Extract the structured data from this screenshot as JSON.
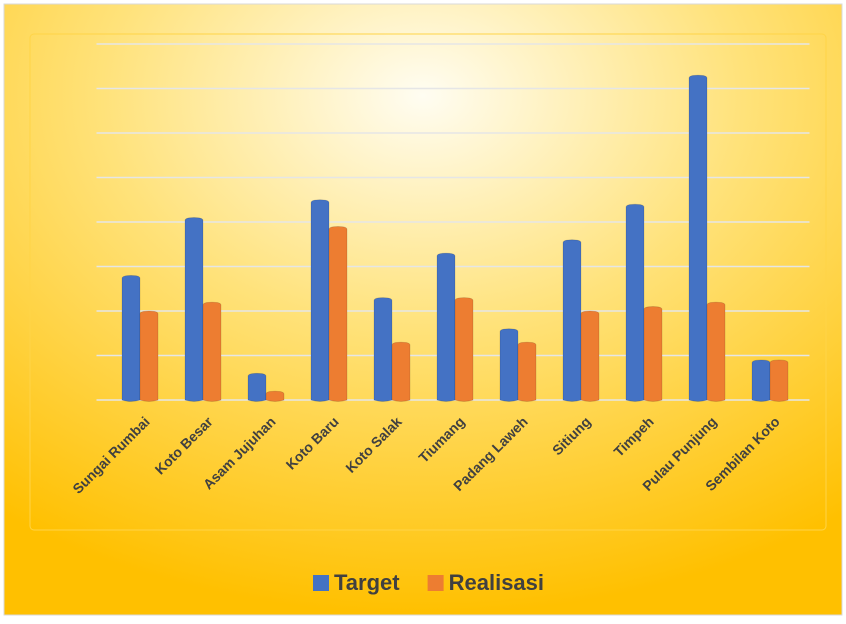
{
  "chart_data": {
    "type": "bar",
    "categories": [
      "Sungai Rumbai",
      "Koto Besar",
      "Asam Jujuhan",
      "Koto Baru",
      "Koto Salak",
      "Tiumang",
      "Padang Laweh",
      "Sitiung",
      "Timpeh",
      "Pulau Punjung",
      "Sembilan Koto"
    ],
    "series": [
      {
        "name": "Target",
        "color": "#4472c4",
        "values": [
          2.8,
          4.1,
          0.6,
          4.5,
          2.3,
          3.3,
          1.6,
          3.6,
          4.4,
          7.3,
          0.9
        ]
      },
      {
        "name": "Realisasi",
        "color": "#ed7d31",
        "values": [
          2.0,
          2.2,
          0.2,
          3.9,
          1.3,
          2.3,
          1.3,
          2.0,
          2.1,
          2.2,
          0.9
        ]
      }
    ],
    "ylim": [
      0,
      8
    ],
    "yticks": [
      0,
      1,
      2,
      3,
      4,
      5,
      6,
      7,
      8
    ],
    "grid": true,
    "legend": "bottom"
  }
}
